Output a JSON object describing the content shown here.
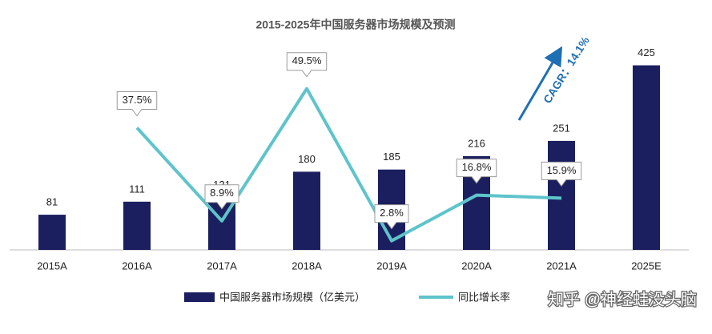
{
  "chart_data": {
    "type": "bar",
    "title": "2015-2025年中国服务器市场规模及预测",
    "categories": [
      "2015A",
      "2016A",
      "2017A",
      "2018A",
      "2019A",
      "2020A",
      "2021A",
      "2025E"
    ],
    "series": [
      {
        "name": "中国服务器市场规模（亿美元）",
        "type": "bar",
        "color": "#1b1f5f",
        "values": [
          81,
          111,
          121,
          180,
          185,
          216,
          251,
          425
        ]
      },
      {
        "name": "同比增长率",
        "type": "line",
        "axis": "y2",
        "color": "#5ec4cb",
        "values": [
          null,
          37.5,
          8.9,
          49.5,
          2.8,
          16.8,
          15.9,
          null
        ],
        "value_labels": [
          null,
          "37.5%",
          "8.9%",
          "49.5%",
          "2.8%",
          "16.8%",
          "15.9%",
          null
        ]
      }
    ],
    "ylim": [
      0,
      450
    ],
    "y2lim": [
      0,
      60
    ],
    "annotations": [
      {
        "text": "CAGR：14.1%",
        "color": "#1f6fb4"
      }
    ],
    "watermark": "知乎 @神经蛙没头脑"
  }
}
